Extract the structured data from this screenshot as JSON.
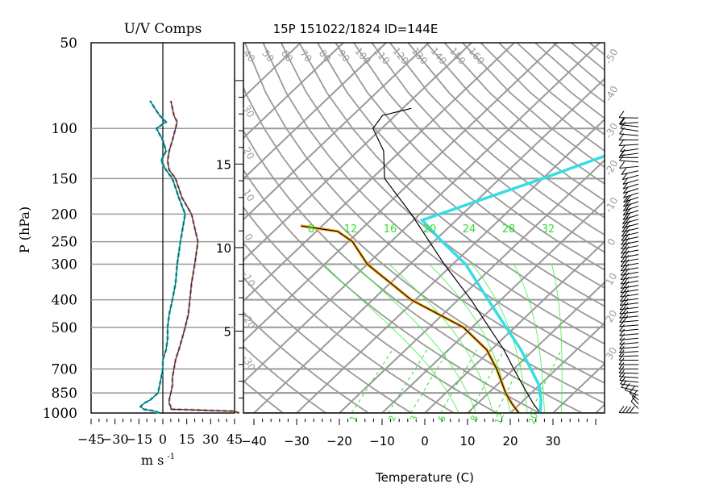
{
  "page": {
    "uv_title": "U/V Comps",
    "sounding_title": "15P 151022/1824 ID=144E",
    "ylabel": "P (hPa)",
    "uv_xlabel": "m s",
    "uv_xlabel_exp": "-1",
    "temp_xlabel": "Temperature (C)"
  },
  "chart_data": [
    {
      "type": "line",
      "title": "U/V Comps",
      "xlabel": "m s -1",
      "ylabel": "P (hPa)",
      "xlim": [
        -45,
        45
      ],
      "xticks": [
        -45,
        -30,
        -15,
        0,
        15,
        30,
        45
      ],
      "xtick_labels": [
        "−45",
        "−30",
        "−15",
        "0",
        "15",
        "30",
        "45"
      ],
      "ylim_hpa": [
        1000,
        50
      ],
      "y_scale": "log",
      "pressure_levels": [
        50,
        100,
        150,
        200,
        250,
        300,
        400,
        500,
        700,
        850,
        1000
      ],
      "pressure_labels": [
        "50",
        "100",
        "150",
        "200",
        "250",
        "300",
        "400",
        "500",
        "700",
        "850",
        "1000"
      ],
      "grid": "horizontal at pressure levels",
      "colors": {
        "u": "#1a1a99",
        "v": "#0b4f4f",
        "u_fill": "#f5a623",
        "v_fill": "#34d7de"
      },
      "series": [
        {
          "key": "u",
          "p": [
            1000,
            985,
            970,
            950,
            925,
            900,
            850,
            800,
            750,
            700,
            650,
            600,
            550,
            500,
            450,
            400,
            350,
            300,
            250,
            200,
            175,
            150,
            140,
            130,
            120,
            110,
            100,
            95,
            90,
            85,
            80
          ],
          "v": [
            48,
            44,
            5,
            5,
            4,
            4,
            5,
            6,
            6,
            7,
            8,
            10,
            12,
            14,
            16,
            17,
            18,
            20,
            22,
            18,
            12,
            8,
            4,
            3,
            4,
            6,
            8,
            9,
            7,
            6,
            5
          ]
        },
        {
          "key": "v",
          "p": [
            1000,
            985,
            970,
            950,
            925,
            900,
            850,
            800,
            750,
            700,
            650,
            600,
            550,
            500,
            450,
            400,
            350,
            300,
            250,
            200,
            175,
            150,
            140,
            130,
            120,
            110,
            100,
            95,
            90,
            85,
            80
          ],
          "v": [
            -2,
            -5,
            -12,
            -14,
            -12,
            -8,
            -3,
            -2,
            -1,
            0,
            0,
            2,
            3,
            3,
            4,
            6,
            8,
            9,
            11,
            14,
            10,
            6,
            2,
            -1,
            2,
            0,
            -4,
            2,
            -2,
            -5,
            -8
          ]
        }
      ]
    },
    {
      "type": "line",
      "title": "15P 151022/1824 ID=144E",
      "xlabel": "Temperature (C)",
      "xlim": [
        -40,
        40
      ],
      "xticks": [
        -40,
        -30,
        -20,
        -10,
        0,
        10,
        20,
        30
      ],
      "xtick_labels": [
        "−40",
        "−30",
        "−20",
        "−10",
        "0",
        "10",
        "20",
        "30"
      ],
      "y_scale": "log",
      "ylim_hpa": [
        1000,
        50
      ],
      "height_ticks_km": [
        5,
        10,
        15
      ],
      "height_tick_labels": [
        "5",
        "10",
        "15"
      ],
      "mixing_ratio_labels": [
        "8",
        "12",
        "16",
        "20",
        "24",
        "28",
        "32"
      ],
      "mixing_ratio_bottom_labels": [
        "1",
        "2",
        "3",
        "5",
        "8",
        "12",
        "20"
      ],
      "theta_labels": [
        "40",
        "50",
        "60",
        "70",
        "80",
        "90",
        "100",
        "110",
        "120",
        "130",
        "140",
        "150",
        "160"
      ],
      "skewed_isotherm_labels": [
        "-50",
        "-40",
        "-30",
        "-20",
        "-10",
        "0",
        "10",
        "20",
        "30"
      ],
      "dry_adiabat_labels": [
        "30",
        "20",
        "10",
        "0",
        "-10",
        "-20",
        "-30"
      ],
      "colors": {
        "temperature": "#000000",
        "dewpoint": "#000000",
        "parcel": "#35dde6",
        "parcel_dew": "#f5a623",
        "grid": "#9a9a9a",
        "mixing_ratio": "#33dd33"
      },
      "series": [
        {
          "key": "temperature",
          "p": [
            1000,
            925,
            850,
            700,
            600,
            500,
            400,
            300,
            250,
            200,
            150,
            120,
            100,
            90,
            85
          ],
          "t": [
            27,
            23,
            19,
            10,
            3,
            -6,
            -17,
            -32,
            -41,
            -52,
            -67,
            -74,
            -82,
            -83,
            -78
          ]
        },
        {
          "key": "dewpoint",
          "p": [
            1000,
            925,
            850,
            700,
            600,
            500,
            400,
            300,
            250,
            230,
            220
          ],
          "t": [
            22,
            18,
            14,
            6,
            -1,
            -12,
            -31,
            -50,
            -59,
            -65,
            -75
          ]
        },
        {
          "key": "parcel",
          "p": [
            1000,
            900,
            800,
            700,
            600,
            500,
            400,
            300,
            250,
            210,
            150,
            100
          ],
          "t": [
            27,
            24,
            20,
            14,
            7,
            -2,
            -13,
            -27,
            -38,
            -48,
            -30,
            -10
          ]
        }
      ]
    }
  ]
}
